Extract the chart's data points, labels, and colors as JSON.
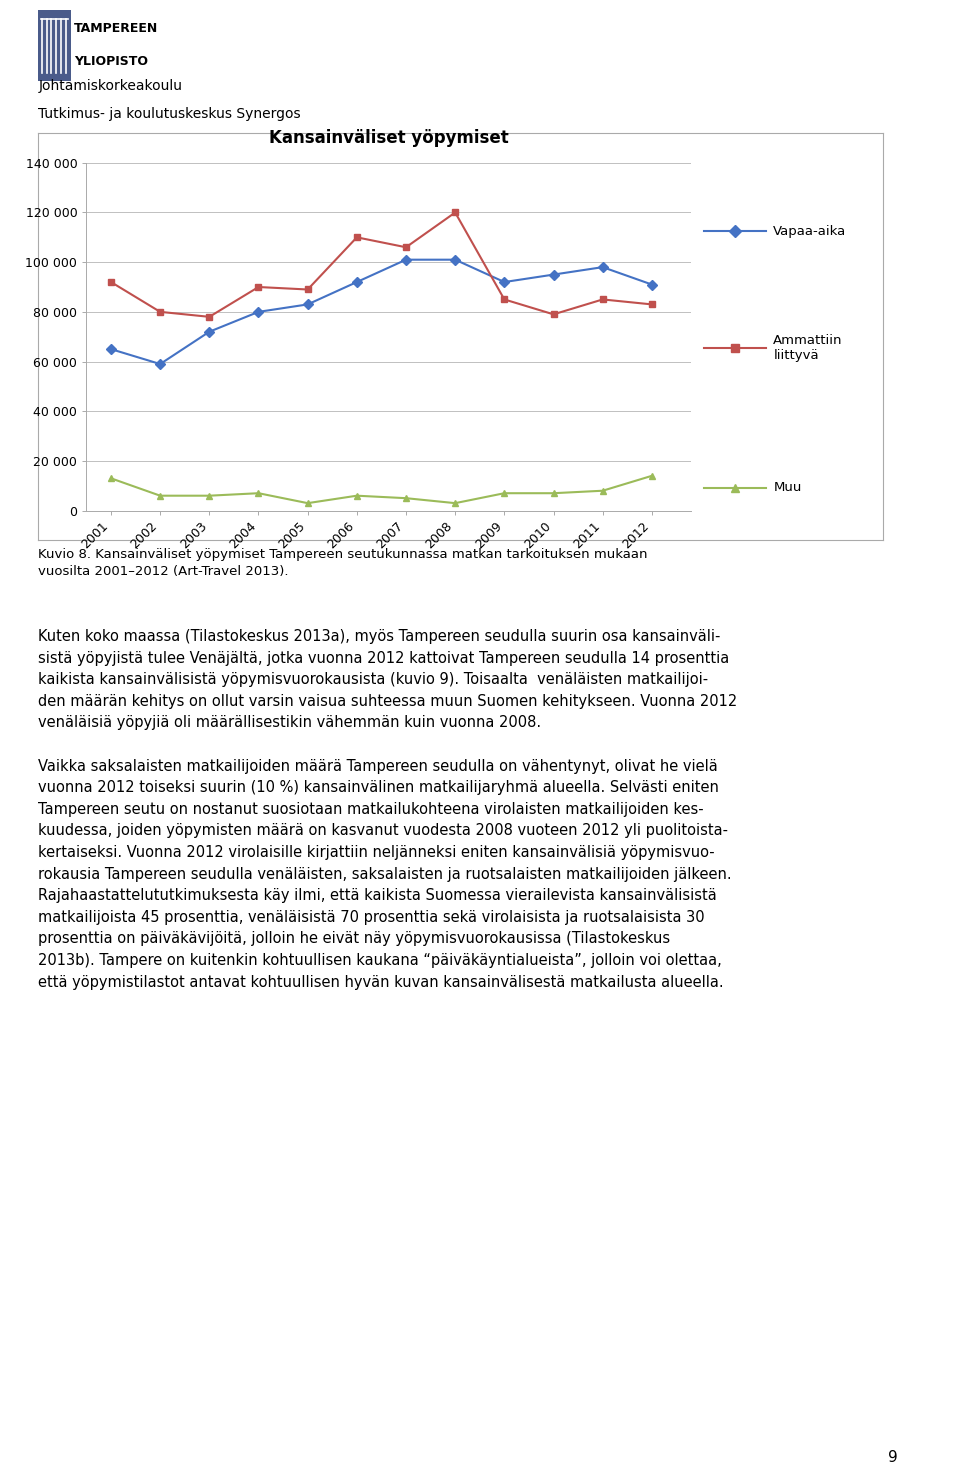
{
  "title": "Kansainväliset yöpymiset",
  "years": [
    2001,
    2002,
    2003,
    2004,
    2005,
    2006,
    2007,
    2008,
    2009,
    2010,
    2011,
    2012
  ],
  "vapaa_aika": [
    65000,
    59000,
    72000,
    80000,
    83000,
    92000,
    101000,
    101000,
    92000,
    95000,
    98000,
    91000
  ],
  "ammattiin": [
    92000,
    80000,
    78000,
    90000,
    89000,
    110000,
    106000,
    120000,
    85000,
    79000,
    85000,
    83000
  ],
  "muu": [
    13000,
    6000,
    6000,
    7000,
    3000,
    6000,
    5000,
    3000,
    7000,
    7000,
    8000,
    14000
  ],
  "ylim": [
    0,
    140000
  ],
  "yticks": [
    0,
    20000,
    40000,
    60000,
    80000,
    100000,
    120000,
    140000
  ],
  "ytick_labels": [
    "0",
    "20 000",
    "40 000",
    "60 000",
    "80 000",
    "100 000",
    "120 000",
    "140 000"
  ],
  "line_colors": {
    "vapaa_aika": "#4472C4",
    "ammattiin": "#C0504D",
    "muu": "#9BBB59"
  },
  "legend_labels": [
    "Vapaa-aika",
    "Ammattiin\nliittyvä",
    "Muu"
  ],
  "caption": "Kuvio 8. Kansainväliset yöpymiset Tampereen seutukunnassa matkan tarkoituksen mukaan\nvuosilta 2001–2012 (Art-Travel 2013).",
  "header_line1": "Johtamiskorkeakoulu",
  "header_line2": "Tutkimus- ja koulutuskeskus Synergos",
  "page_number": "9",
  "background_color": "#FFFFFF",
  "chart_bg": "#FFFFFF",
  "border_color": "#808080",
  "logo_color": "#4A5B8A"
}
